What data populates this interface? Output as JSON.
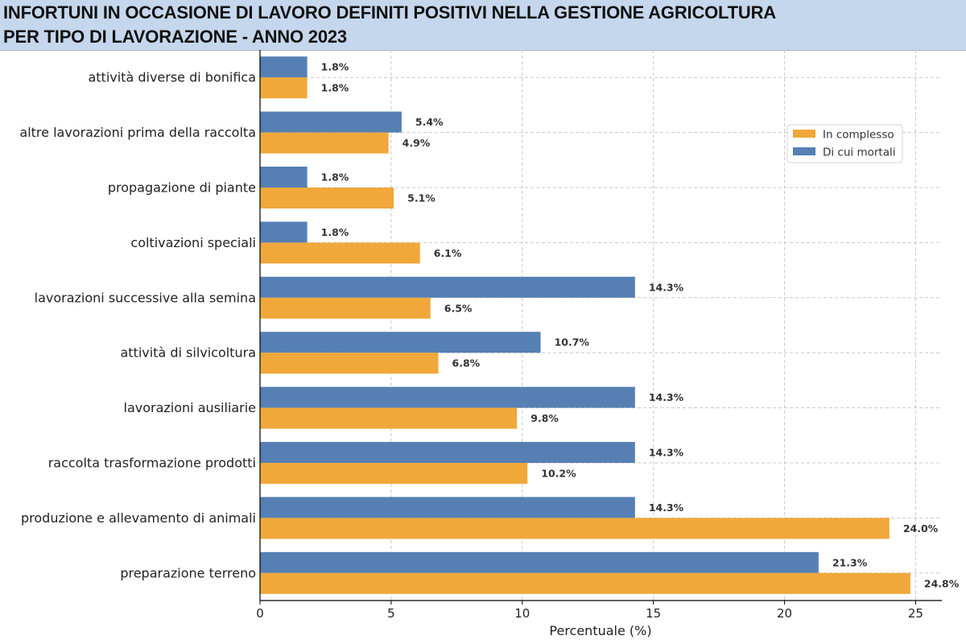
{
  "title": {
    "line1": "INFORTUNI IN OCCASIONE DI LAVORO DEFINITI POSITIVI NELLA GESTIONE AGRICOLTURA",
    "line2": "PER TIPO DI LAVORAZIONE - ANNO 2023"
  },
  "colors": {
    "title_band": "#c5d7ec",
    "in_complesso": "#f0a83a",
    "mortali": "#5680b4"
  },
  "chart_data": {
    "type": "bar",
    "orientation": "horizontal",
    "title": "INFORTUNI IN OCCASIONE DI LAVORO DEFINITI POSITIVI NELLA GESTIONE AGRICOLTURA PER TIPO DI LAVORAZIONE - ANNO 2023",
    "xlabel": "Percentuale (%)",
    "ylabel": "",
    "xlim": [
      0,
      26
    ],
    "xticks": [
      0,
      5,
      10,
      15,
      20,
      25
    ],
    "grid": true,
    "legend_position": "upper-right",
    "categories": [
      "attività diverse di bonifica",
      "altre lavorazioni prima della raccolta",
      "propagazione di piante",
      "coltivazioni speciali",
      "lavorazioni successive alla semina",
      "attività di silvicoltura",
      "lavorazioni ausiliarie",
      "raccolta trasformazione prodotti",
      "produzione e allevamento di animali",
      "preparazione terreno"
    ],
    "series": [
      {
        "name": "In complesso",
        "color": "#f0a83a",
        "values": [
          1.8,
          4.9,
          5.1,
          6.1,
          6.5,
          6.8,
          9.8,
          10.2,
          24.0,
          24.8
        ],
        "labels": [
          "1.8%",
          "4.9%",
          "5.1%",
          "6.1%",
          "6.5%",
          "6.8%",
          "9.8%",
          "10.2%",
          "24.0%",
          "24.8%"
        ]
      },
      {
        "name": "Di cui mortali",
        "color": "#5680b4",
        "values": [
          1.8,
          5.4,
          1.8,
          1.8,
          14.3,
          10.7,
          14.3,
          14.3,
          14.3,
          21.3
        ],
        "labels": [
          "1.8%",
          "5.4%",
          "1.8%",
          "1.8%",
          "14.3%",
          "10.7%",
          "14.3%",
          "14.3%",
          "14.3%",
          "21.3%"
        ]
      }
    ]
  }
}
